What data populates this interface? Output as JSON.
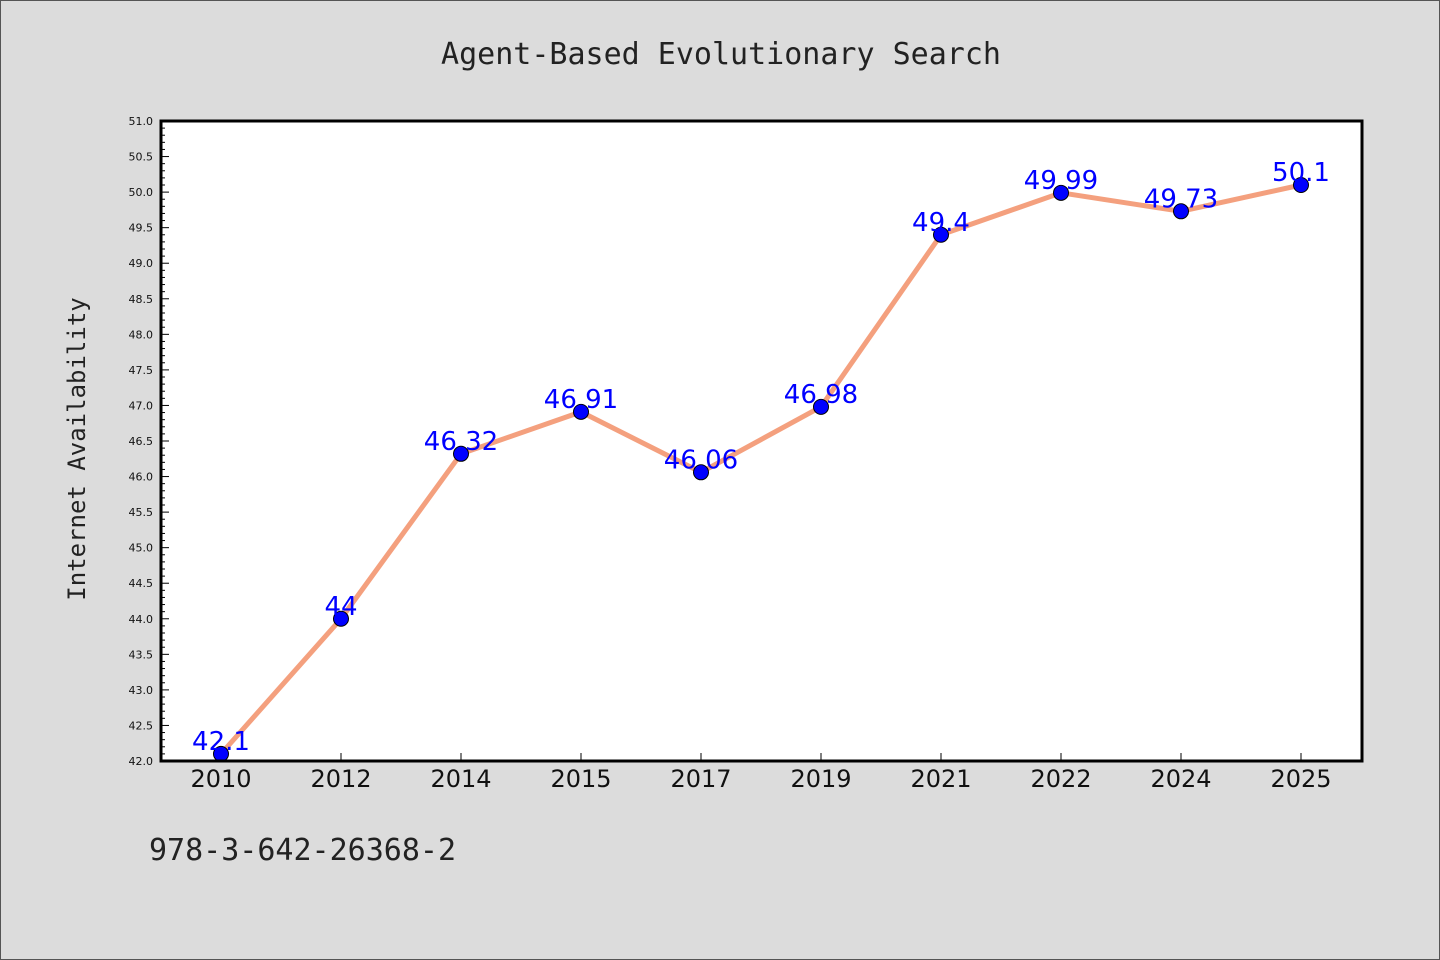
{
  "chart_data": {
    "type": "line",
    "title": "Agent-Based Evolutionary Search",
    "xlabel": "",
    "ylabel": "Internet Availability",
    "categories": [
      "2010",
      "2012",
      "2014",
      "2015",
      "2017",
      "2019",
      "2021",
      "2022",
      "2024",
      "2025"
    ],
    "series": [
      {
        "values": [
          42.1,
          44,
          46.32,
          46.91,
          46.06,
          46.98,
          49.4,
          49.99,
          49.73,
          50.1
        ],
        "data_labels": [
          "42.1",
          "44",
          "46.32",
          "46.91",
          "46.06",
          "46.98",
          "49.4",
          "49.99",
          "49.73",
          "50.1"
        ]
      }
    ],
    "ylim": [
      42.0,
      51.0
    ],
    "yticks": [
      "42.0",
      "42.5",
      "43.0",
      "43.5",
      "44.0",
      "44.5",
      "45.0",
      "45.5",
      "46.0",
      "46.5",
      "47.0",
      "47.5",
      "48.0",
      "48.5",
      "49.0",
      "49.5",
      "50.0",
      "50.5",
      "51.0"
    ],
    "grid": false,
    "legend": "none",
    "colors": {
      "line": "#f4a07e",
      "marker": "#0000ff",
      "data_label": "#0000ff",
      "plot_background": "#ffffff",
      "figure_background": "#dcdcdc"
    }
  },
  "footnote": "978-3-642-26368-2"
}
